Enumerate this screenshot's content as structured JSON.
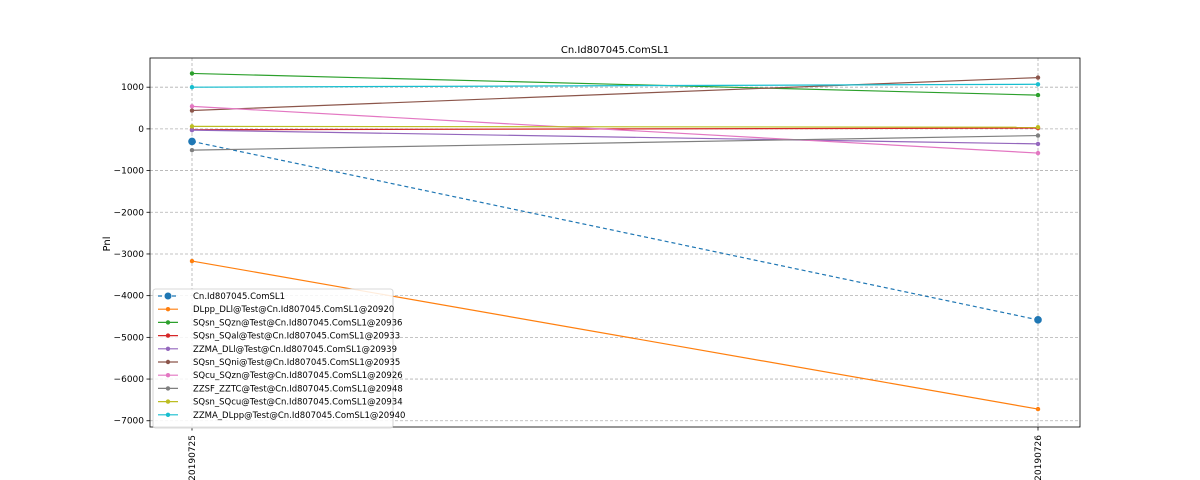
{
  "chart_data": {
    "type": "line",
    "title": "Cn.Id807045.ComSL1",
    "xlabel": "",
    "ylabel": "Pnl",
    "categories": [
      "20190725",
      "20190726"
    ],
    "ylim": [
      -7150,
      1700
    ],
    "yticks": [
      1000,
      0,
      -1000,
      -2000,
      -3000,
      -4000,
      -5000,
      -6000,
      -7000
    ],
    "ytick_labels": [
      "1000",
      "0",
      "−1000",
      "−2000",
      "−3000",
      "−4000",
      "−5000",
      "−6000",
      "−7000"
    ],
    "grid": true,
    "legend_position": "lower-left",
    "series": [
      {
        "name": "Cn.Id807045.ComSL1",
        "values": [
          -300,
          -4580
        ],
        "color": "#1f77b4",
        "dashed": true,
        "marker": "large"
      },
      {
        "name": "DLpp_DLl@Test@Cn.Id807045.ComSL1@20920",
        "values": [
          -3170,
          -6720
        ],
        "color": "#ff7f0e"
      },
      {
        "name": "SQsn_SQzn@Test@Cn.Id807045.ComSL1@20936",
        "values": [
          1330,
          810
        ],
        "color": "#2ca02c"
      },
      {
        "name": "SQsn_SQal@Test@Cn.Id807045.ComSL1@20933",
        "values": [
          -20,
          20
        ],
        "color": "#d62728"
      },
      {
        "name": "ZZMA_DLl@Test@Cn.Id807045.ComSL1@20939",
        "values": [
          -30,
          -360
        ],
        "color": "#9467bd"
      },
      {
        "name": "SQsn_SQni@Test@Cn.Id807045.ComSL1@20935",
        "values": [
          440,
          1230
        ],
        "color": "#8c564b"
      },
      {
        "name": "SQcu_SQzn@Test@Cn.Id807045.ComSL1@20926",
        "values": [
          540,
          -580
        ],
        "color": "#e377c2"
      },
      {
        "name": "ZZSF_ZZTC@Test@Cn.Id807045.ComSL1@20948",
        "values": [
          -510,
          -160
        ],
        "color": "#7f7f7f"
      },
      {
        "name": "SQsn_SQcu@Test@Cn.Id807045.ComSL1@20934",
        "values": [
          60,
          40
        ],
        "color": "#bcbd22"
      },
      {
        "name": "ZZMA_DLpp@Test@Cn.Id807045.ComSL1@20940",
        "values": [
          1000,
          1070
        ],
        "color": "#17becf"
      }
    ]
  }
}
